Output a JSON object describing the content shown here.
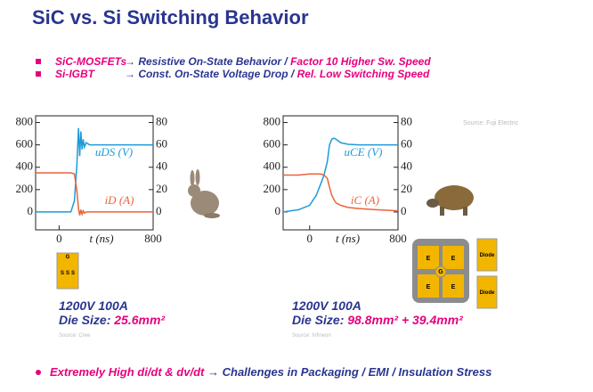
{
  "header": {
    "title": "SiC vs. Si Switching Behavior"
  },
  "bullets": [
    {
      "term": "SiC-MOSFETs",
      "arrow": "→",
      "text": "Resistive On-State Behavior /",
      "highlight": "Factor 10 Higher Sw. Speed"
    },
    {
      "term": "Si-IGBT",
      "arrow": "→",
      "text": "Const. On-State Voltage Drop /",
      "highlight": "Rel. Low Switching Speed"
    }
  ],
  "chart_data": [
    {
      "type": "line",
      "x_label": "t (ns)",
      "x": [
        -200,
        0,
        100,
        130,
        150,
        165,
        175,
        185,
        195,
        205,
        215,
        230,
        260,
        300,
        400,
        600,
        800
      ],
      "series": [
        {
          "name": "uDS (V)",
          "color": "#1e9bd7",
          "values": [
            0,
            0,
            0,
            100,
            400,
            750,
            500,
            720,
            560,
            650,
            580,
            620,
            600,
            600,
            600,
            600,
            600
          ]
        },
        {
          "name": "iD (A)",
          "color": "#e9643a",
          "axis": "y2",
          "values": [
            35,
            35,
            35,
            34,
            20,
            3,
            -3,
            2,
            -2,
            1,
            -1,
            0,
            0,
            0,
            0,
            0,
            0
          ]
        }
      ],
      "xlim": [
        -200,
        800
      ],
      "xticks": [
        0,
        800
      ],
      "ylim": [
        -160,
        860
      ],
      "yticks": [
        0,
        200,
        400,
        600,
        800
      ],
      "y2lim": [
        -16,
        86
      ],
      "y2ticks": [
        0,
        20,
        40,
        60,
        80
      ]
    },
    {
      "type": "line",
      "x_label": "t (ns)",
      "x": [
        -240,
        -100,
        0,
        60,
        100,
        130,
        160,
        180,
        200,
        220,
        240,
        280,
        350,
        450,
        600,
        800
      ],
      "series": [
        {
          "name": "uCE (V)",
          "color": "#1e9bd7",
          "values": [
            0,
            20,
            60,
            150,
            250,
            330,
            450,
            600,
            650,
            660,
            650,
            620,
            605,
            600,
            600,
            600
          ]
        },
        {
          "name": "iC (A)",
          "color": "#e9643a",
          "axis": "y2",
          "values": [
            33,
            33,
            34,
            34,
            34,
            33,
            30,
            22,
            15,
            11,
            8,
            6,
            4,
            3,
            2,
            1
          ]
        }
      ],
      "xlim": [
        -240,
        800
      ],
      "xticks": [
        0,
        800
      ],
      "ylim": [
        -160,
        860
      ],
      "yticks": [
        0,
        200,
        400,
        600,
        800
      ],
      "y2lim": [
        -16,
        86
      ],
      "y2ticks": [
        0,
        20,
        40,
        60,
        80
      ]
    }
  ],
  "chart_source": "Source: Fuji Electric",
  "devices": [
    {
      "rating": "1200V  100A",
      "die_label": "Die Size:",
      "die_size": "25.6mm²",
      "source": "Source: Cree",
      "chip_labels": [
        "G",
        "S",
        "S",
        "S"
      ]
    },
    {
      "rating": "1200V  100A",
      "die_label": "Die Size:",
      "die_size": "98.8mm² + 39.4mm²",
      "source": "Source: Infineon",
      "chip_labels": [
        "E",
        "E",
        "G",
        "E",
        "E"
      ],
      "diode_labels": [
        "Diode",
        "Diode"
      ]
    }
  ],
  "footer": {
    "text": "Extremely High  di/dt & dv/dt",
    "arrow": "→",
    "rest": "Challenges in Packaging / EMI / Insulation Stress"
  }
}
